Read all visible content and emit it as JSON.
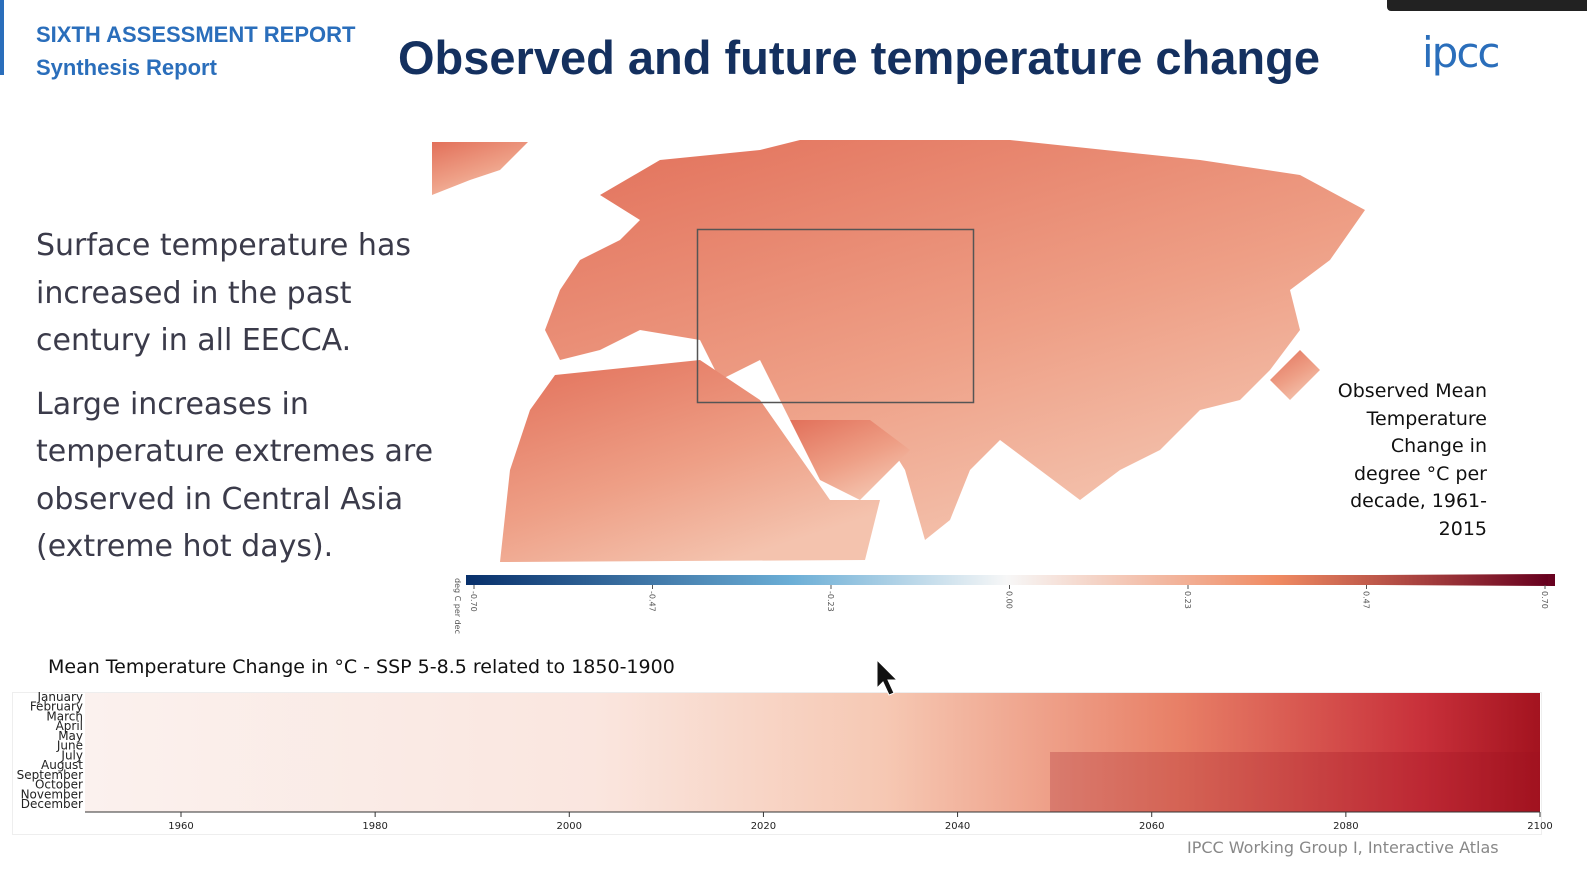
{
  "header": {
    "report": "SIXTH ASSESSMENT REPORT",
    "subreport": "Synthesis Report",
    "title": "Observed and future temperature change",
    "logo": "ipcc"
  },
  "bullets": [
    [
      "Surface temperature has",
      "increased in the past",
      "century in all EECCA."
    ],
    [
      "Large increases in",
      "temperature extremes are",
      "observed in Central Asia",
      "(extreme hot days)."
    ]
  ],
  "map": {
    "caption": [
      "Observed Mean",
      "Temperature",
      "Change in",
      "degree °C per",
      "decade, 1961-",
      "2015"
    ],
    "colorbar": {
      "unit": "deg C per dec",
      "ticks": [
        "-0.70",
        "-0.47",
        "-0.23",
        "0.00",
        "0.23",
        "0.47",
        "0.70"
      ]
    }
  },
  "heatmap": {
    "title": "Mean Temperature Change in °C - SSP 5-8.5 related to 1850-1900",
    "months": [
      "January",
      "February",
      "March",
      "April",
      "May",
      "June",
      "July",
      "August",
      "September",
      "October",
      "November",
      "December"
    ],
    "years": [
      "1960",
      "1980",
      "2000",
      "2020",
      "2040",
      "2060",
      "2080",
      "2100"
    ]
  },
  "source": "IPCC Working Group I, Interactive Atlas"
}
